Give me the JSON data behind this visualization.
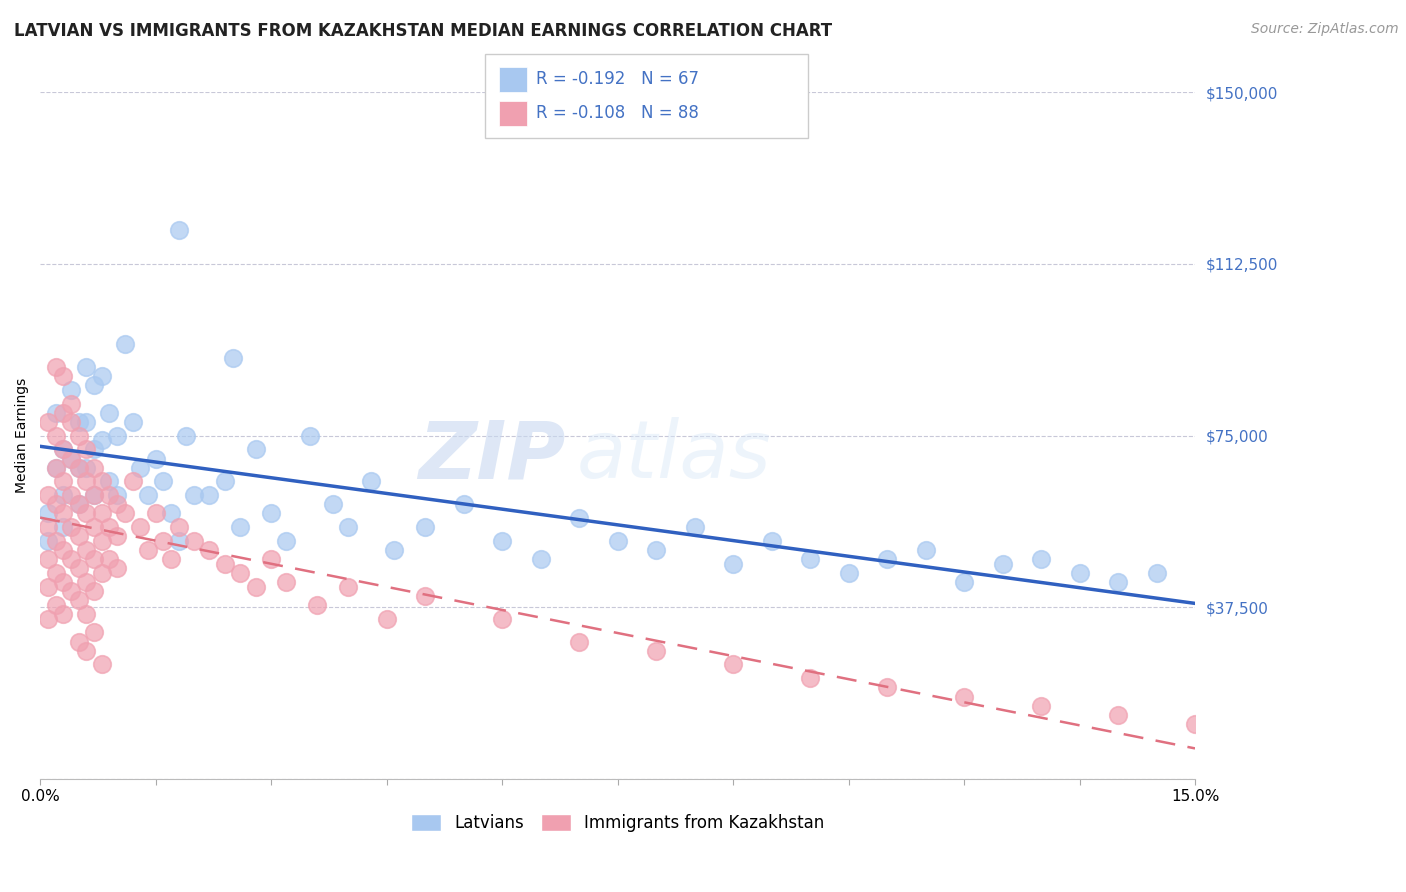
{
  "title": "LATVIAN VS IMMIGRANTS FROM KAZAKHSTAN MEDIAN EARNINGS CORRELATION CHART",
  "source": "Source: ZipAtlas.com",
  "ylabel": "Median Earnings",
  "xlim": [
    0.0,
    0.15
  ],
  "ylim": [
    0,
    150000
  ],
  "yticks": [
    0,
    37500,
    75000,
    112500,
    150000
  ],
  "ytick_labels": [
    "",
    "$37,500",
    "$75,000",
    "$112,500",
    "$150,000"
  ],
  "background_color": "#ffffff",
  "grid_color": "#c8c8d8",
  "latvian_color": "#a8c8f0",
  "kazakh_color": "#f0a0b0",
  "latvian_line_color": "#3060c0",
  "kazakh_line_color": "#e07080",
  "tick_color": "#4472c4",
  "legend_r1": "R = -0.192",
  "legend_n1": "N = 67",
  "legend_r2": "R = -0.108",
  "legend_n2": "N = 88",
  "title_fontsize": 12,
  "axis_label_fontsize": 10,
  "tick_fontsize": 11,
  "source_fontsize": 10,
  "legend_fontsize": 12,
  "latvians_x": [
    0.001,
    0.001,
    0.002,
    0.002,
    0.003,
    0.003,
    0.003,
    0.004,
    0.004,
    0.005,
    0.005,
    0.005,
    0.006,
    0.006,
    0.006,
    0.007,
    0.007,
    0.007,
    0.008,
    0.008,
    0.009,
    0.009,
    0.01,
    0.01,
    0.011,
    0.012,
    0.013,
    0.014,
    0.015,
    0.016,
    0.017,
    0.018,
    0.019,
    0.02,
    0.022,
    0.024,
    0.026,
    0.028,
    0.03,
    0.032,
    0.035,
    0.038,
    0.04,
    0.043,
    0.046,
    0.05,
    0.055,
    0.06,
    0.065,
    0.07,
    0.075,
    0.08,
    0.085,
    0.09,
    0.095,
    0.1,
    0.105,
    0.11,
    0.115,
    0.12,
    0.125,
    0.13,
    0.135,
    0.14,
    0.145,
    0.018,
    0.025
  ],
  "latvians_y": [
    58000,
    52000,
    80000,
    68000,
    72000,
    62000,
    55000,
    85000,
    70000,
    78000,
    68000,
    60000,
    90000,
    78000,
    68000,
    86000,
    72000,
    62000,
    88000,
    74000,
    80000,
    65000,
    75000,
    62000,
    95000,
    78000,
    68000,
    62000,
    70000,
    65000,
    58000,
    52000,
    75000,
    62000,
    62000,
    65000,
    55000,
    72000,
    58000,
    52000,
    75000,
    60000,
    55000,
    65000,
    50000,
    55000,
    60000,
    52000,
    48000,
    57000,
    52000,
    50000,
    55000,
    47000,
    52000,
    48000,
    45000,
    48000,
    50000,
    43000,
    47000,
    48000,
    45000,
    43000,
    45000,
    120000,
    92000
  ],
  "kazakh_x": [
    0.001,
    0.001,
    0.001,
    0.001,
    0.001,
    0.002,
    0.002,
    0.002,
    0.002,
    0.002,
    0.002,
    0.003,
    0.003,
    0.003,
    0.003,
    0.003,
    0.003,
    0.003,
    0.004,
    0.004,
    0.004,
    0.004,
    0.004,
    0.004,
    0.005,
    0.005,
    0.005,
    0.005,
    0.005,
    0.005,
    0.006,
    0.006,
    0.006,
    0.006,
    0.006,
    0.006,
    0.007,
    0.007,
    0.007,
    0.007,
    0.007,
    0.008,
    0.008,
    0.008,
    0.008,
    0.009,
    0.009,
    0.009,
    0.01,
    0.01,
    0.01,
    0.011,
    0.012,
    0.013,
    0.014,
    0.015,
    0.016,
    0.017,
    0.018,
    0.02,
    0.022,
    0.024,
    0.026,
    0.028,
    0.03,
    0.032,
    0.036,
    0.04,
    0.045,
    0.05,
    0.06,
    0.07,
    0.08,
    0.09,
    0.1,
    0.11,
    0.12,
    0.13,
    0.14,
    0.15,
    0.005,
    0.006,
    0.007,
    0.008,
    0.003,
    0.004,
    0.002,
    0.001
  ],
  "kazakh_y": [
    62000,
    55000,
    48000,
    42000,
    35000,
    75000,
    68000,
    60000,
    52000,
    45000,
    38000,
    80000,
    72000,
    65000,
    58000,
    50000,
    43000,
    36000,
    78000,
    70000,
    62000,
    55000,
    48000,
    41000,
    75000,
    68000,
    60000,
    53000,
    46000,
    39000,
    72000,
    65000,
    58000,
    50000,
    43000,
    36000,
    68000,
    62000,
    55000,
    48000,
    41000,
    65000,
    58000,
    52000,
    45000,
    62000,
    55000,
    48000,
    60000,
    53000,
    46000,
    58000,
    65000,
    55000,
    50000,
    58000,
    52000,
    48000,
    55000,
    52000,
    50000,
    47000,
    45000,
    42000,
    48000,
    43000,
    38000,
    42000,
    35000,
    40000,
    35000,
    30000,
    28000,
    25000,
    22000,
    20000,
    18000,
    16000,
    14000,
    12000,
    30000,
    28000,
    32000,
    25000,
    88000,
    82000,
    90000,
    78000
  ]
}
